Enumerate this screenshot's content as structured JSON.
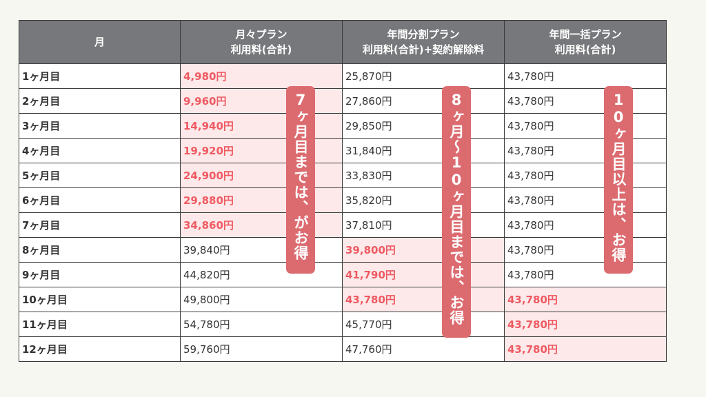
{
  "headers": [
    {
      "line1": "月",
      "line2": ""
    },
    {
      "line1": "月々プラン",
      "line2": "利用料(合計)"
    },
    {
      "line1": "年間分割プラン",
      "line2": "利用料(合計)+契約解除料"
    },
    {
      "line1": "年間一括プラン",
      "line2": "利用料(合計)"
    }
  ],
  "rows": [
    {
      "month": "1ヶ月目",
      "monthly": "4,980円",
      "split": "25,870円",
      "lump": "43,780円"
    },
    {
      "month": "2ヶ月目",
      "monthly": "9,960円",
      "split": "27,860円",
      "lump": "43,780円"
    },
    {
      "month": "3ヶ月目",
      "monthly": "14,940円",
      "split": "29,850円",
      "lump": "43,780円"
    },
    {
      "month": "4ヶ月目",
      "monthly": "19,920円",
      "split": "31,840円",
      "lump": "43,780円"
    },
    {
      "month": "5ヶ月目",
      "monthly": "24,900円",
      "split": "33,830円",
      "lump": "43,780円"
    },
    {
      "month": "6ヶ月目",
      "monthly": "29,880円",
      "split": "35,820円",
      "lump": "43,780円"
    },
    {
      "month": "7ヶ月目",
      "monthly": "34,860円",
      "split": "37,810円",
      "lump": "43,780円"
    },
    {
      "month": "8ヶ月目",
      "monthly": "39,840円",
      "split": "39,800円",
      "lump": "43,780円"
    },
    {
      "month": "9ヶ月目",
      "monthly": "44,820円",
      "split": "41,790円",
      "lump": "43,780円"
    },
    {
      "month": "10ヶ月目",
      "monthly": "49,800円",
      "split": "43,780円",
      "lump": "43,780円"
    },
    {
      "month": "11ヶ月目",
      "monthly": "54,780円",
      "split": "45,770円",
      "lump": "43,780円"
    },
    {
      "month": "12ヶ月目",
      "monthly": "59,760円",
      "split": "47,760円",
      "lump": "43,780円"
    }
  ],
  "notes": {
    "monthly": "7ヶ月目までは、がお得",
    "split": "8ヶ月〜10ヶ月目までは、お得",
    "lump": "10ヶ月目以上は、お得"
  },
  "colors": {
    "header_bg": "#77787b",
    "highlight_bg": "#fde9e9",
    "highlight_text": "#ef5a63",
    "note_bg": "#dc6b70"
  }
}
